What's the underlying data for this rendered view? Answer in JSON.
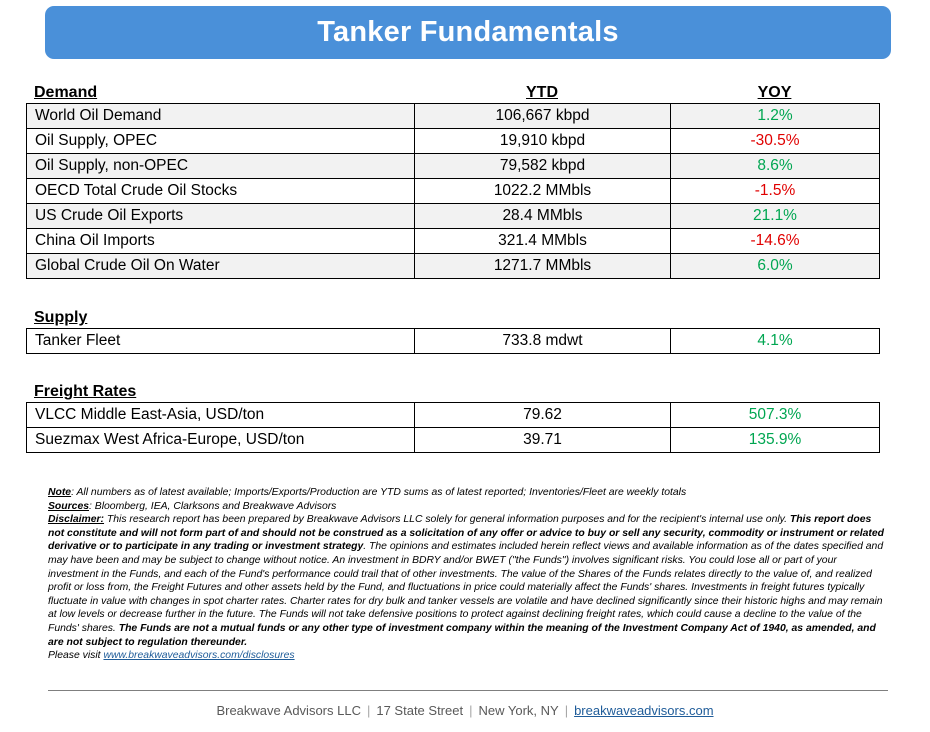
{
  "title": "Tanker Fundamentals",
  "demand": {
    "heading": "Demand",
    "ytd_heading": "YTD",
    "yoy_heading": "YOY",
    "rows": [
      {
        "label": "World Oil Demand",
        "ytd": "106,667 kbpd",
        "yoy": "1.2%",
        "trend": "pos"
      },
      {
        "label": "Oil Supply, OPEC",
        "ytd": "19,910 kbpd",
        "yoy": "-30.5%",
        "trend": "neg"
      },
      {
        "label": "Oil Supply, non-OPEC",
        "ytd": "79,582 kbpd",
        "yoy": "8.6%",
        "trend": "pos"
      },
      {
        "label": "OECD Total Crude Oil Stocks",
        "ytd": "1022.2 MMbls",
        "yoy": "-1.5%",
        "trend": "neg"
      },
      {
        "label": "US Crude Oil Exports",
        "ytd": "28.4 MMbls",
        "yoy": "21.1%",
        "trend": "pos"
      },
      {
        "label": "China Oil Imports",
        "ytd": "321.4 MMbls",
        "yoy": "-14.6%",
        "trend": "neg"
      },
      {
        "label": "Global Crude Oil On Water",
        "ytd": "1271.7 MMbls",
        "yoy": "6.0%",
        "trend": "pos"
      }
    ]
  },
  "supply": {
    "heading": "Supply",
    "rows": [
      {
        "label": "Tanker Fleet",
        "ytd": "733.8 mdwt",
        "yoy": "4.1%",
        "trend": "pos"
      }
    ]
  },
  "freight": {
    "heading": "Freight Rates",
    "rows": [
      {
        "label": "VLCC Middle East-Asia, USD/ton",
        "ytd": "79.62",
        "yoy": "507.3%",
        "trend": "pos"
      },
      {
        "label": "Suezmax West Africa-Europe, USD/ton",
        "ytd": "39.71",
        "yoy": "135.9%",
        "trend": "pos"
      }
    ]
  },
  "notes": {
    "note_label": "Note",
    "note_text": ": All numbers as of latest available; Imports/Exports/Production are YTD sums as of latest reported; Inventories/Fleet are weekly totals",
    "sources_label": "Sources",
    "sources_text": ": Bloomberg, IEA, Clarksons and Breakwave Advisors",
    "disclaimer_label": "Disclaimer:",
    "disclaimer_1": " This research report has been prepared by Breakwave Advisors LLC solely for general information purposes and for the recipient's internal use only. ",
    "disclaimer_bold_1": "This report does not constitute and will not form part of and should not be construed as a solicitation of any offer or advice to buy or sell any security, commodity or instrument or related derivative or to participate in any trading or investment strategy",
    "disclaimer_2": ". The opinions and estimates included herein reflect views and available information as of the dates specified and may have been and may be subject to change without notice. An investment in BDRY and/or BWET (\"the Funds\") involves significant risks. You could lose all or part of your investment in the Funds, and each of the Fund's performance could trail that of other investments. The value of the Shares of the Funds relates directly to the value of, and realized profit or loss from, the Freight Futures and other assets held by the Fund, and fluctuations in price could materially affect the Funds' shares. Investments in freight futures typically fluctuate in value with changes in spot charter rates. Charter rates for dry bulk and tanker vessels are volatile and have declined significantly since their historic highs and may remain at low levels or decrease further in the future. The Funds will not take defensive positions to protect against declining freight rates, which could cause a decline to the value of the Funds' shares. ",
    "disclaimer_bold_2": "The Funds are not a mutual funds or any other type of investment company within the meaning of the Investment Company Act of 1940, as amended, and are not subject to regulation thereunder.",
    "visit_text": "Please visit ",
    "visit_link": "www.breakwaveadvisors.com/disclosures"
  },
  "footer": {
    "company": "Breakwave Advisors LLC",
    "address": "17 State Street",
    "city": "New York, NY",
    "website": "breakwaveadvisors.com",
    "separator": "|"
  },
  "colors": {
    "banner": "#4a90d9",
    "positive": "#00a651",
    "negative": "#e00000",
    "link": "#1f5c99"
  }
}
